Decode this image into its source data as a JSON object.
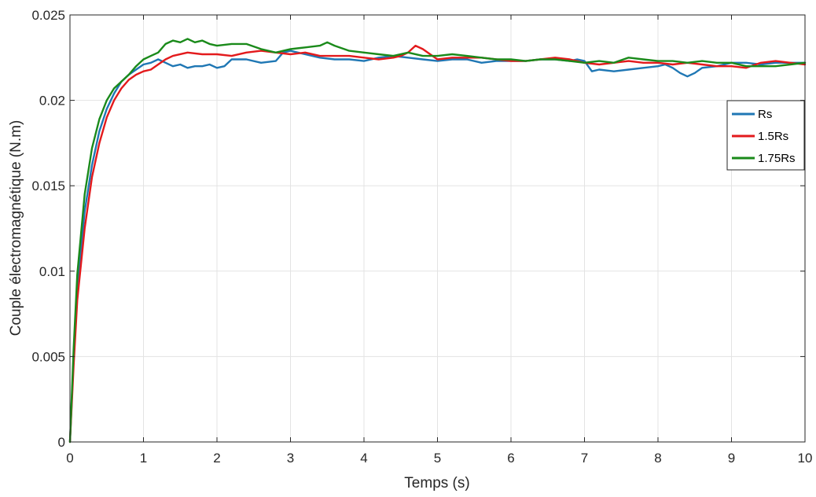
{
  "chart_data": {
    "type": "line",
    "title": "",
    "xlabel": "Temps (s)",
    "ylabel": "Couple électromagnétique (N.m)",
    "xlim": [
      0,
      10
    ],
    "ylim": [
      0,
      0.025
    ],
    "xticks": [
      0,
      1,
      2,
      3,
      4,
      5,
      6,
      7,
      8,
      9,
      10
    ],
    "yticks": [
      0,
      0.005,
      0.01,
      0.015,
      0.02,
      0.025
    ],
    "xtick_labels": [
      "0",
      "1",
      "2",
      "3",
      "4",
      "5",
      "6",
      "7",
      "8",
      "9",
      "10"
    ],
    "ytick_labels": [
      "0",
      "0.005",
      "0.01",
      "0.015",
      "0.02",
      "0.025"
    ],
    "grid": true,
    "legend_position": "right",
    "series": [
      {
        "name": "Rs",
        "color": "#1f77b4",
        "x": [
          0,
          0.05,
          0.1,
          0.2,
          0.3,
          0.4,
          0.5,
          0.6,
          0.7,
          0.8,
          0.9,
          1.0,
          1.1,
          1.2,
          1.3,
          1.4,
          1.5,
          1.6,
          1.7,
          1.8,
          1.9,
          2.0,
          2.1,
          2.2,
          2.4,
          2.6,
          2.8,
          2.9,
          3.0,
          3.1,
          3.2,
          3.4,
          3.6,
          3.8,
          4.0,
          4.2,
          4.4,
          4.6,
          4.8,
          5.0,
          5.2,
          5.4,
          5.6,
          5.8,
          6.0,
          6.2,
          6.4,
          6.6,
          6.8,
          6.9,
          7.0,
          7.1,
          7.2,
          7.4,
          7.6,
          7.8,
          8.0,
          8.1,
          8.2,
          8.3,
          8.4,
          8.5,
          8.6,
          8.8,
          9.0,
          9.2,
          9.4,
          9.6,
          9.8,
          10.0
        ],
        "values": [
          0,
          0.005,
          0.009,
          0.0135,
          0.0162,
          0.0182,
          0.0195,
          0.0204,
          0.0211,
          0.0215,
          0.0218,
          0.0221,
          0.0222,
          0.0224,
          0.0222,
          0.022,
          0.0221,
          0.0219,
          0.022,
          0.022,
          0.0221,
          0.0219,
          0.022,
          0.0224,
          0.0224,
          0.0222,
          0.0223,
          0.0228,
          0.0229,
          0.0228,
          0.0227,
          0.0225,
          0.0224,
          0.0224,
          0.0223,
          0.0225,
          0.0226,
          0.0225,
          0.0224,
          0.0223,
          0.0224,
          0.0224,
          0.0222,
          0.0223,
          0.0223,
          0.0223,
          0.0224,
          0.0224,
          0.0223,
          0.0224,
          0.0223,
          0.0217,
          0.0218,
          0.0217,
          0.0218,
          0.0219,
          0.022,
          0.0221,
          0.0219,
          0.0216,
          0.0214,
          0.0216,
          0.0219,
          0.022,
          0.0222,
          0.0222,
          0.0221,
          0.0222,
          0.0222,
          0.0222
        ]
      },
      {
        "name": "1.5Rs",
        "color": "#e31a1c",
        "x": [
          0,
          0.05,
          0.1,
          0.2,
          0.3,
          0.4,
          0.5,
          0.6,
          0.7,
          0.8,
          0.9,
          1.0,
          1.1,
          1.2,
          1.3,
          1.4,
          1.6,
          1.8,
          2.0,
          2.2,
          2.4,
          2.6,
          2.8,
          3.0,
          3.2,
          3.4,
          3.6,
          3.8,
          4.0,
          4.2,
          4.4,
          4.5,
          4.6,
          4.7,
          4.8,
          4.9,
          5.0,
          5.2,
          5.4,
          5.6,
          5.8,
          6.0,
          6.2,
          6.4,
          6.6,
          6.8,
          7.0,
          7.2,
          7.4,
          7.6,
          7.8,
          8.0,
          8.2,
          8.4,
          8.6,
          8.8,
          9.0,
          9.2,
          9.4,
          9.6,
          9.8,
          10.0
        ],
        "values": [
          0,
          0.0045,
          0.0083,
          0.0125,
          0.0155,
          0.0175,
          0.019,
          0.02,
          0.0207,
          0.0212,
          0.0215,
          0.0217,
          0.0218,
          0.0221,
          0.0224,
          0.0226,
          0.0228,
          0.0227,
          0.0227,
          0.0226,
          0.0228,
          0.0229,
          0.0228,
          0.0227,
          0.0228,
          0.0226,
          0.0226,
          0.0226,
          0.0225,
          0.0224,
          0.0225,
          0.0226,
          0.0228,
          0.0232,
          0.023,
          0.0227,
          0.0224,
          0.0225,
          0.0225,
          0.0225,
          0.0224,
          0.0223,
          0.0223,
          0.0224,
          0.0225,
          0.0224,
          0.0222,
          0.0221,
          0.0222,
          0.0223,
          0.0222,
          0.0222,
          0.0221,
          0.0222,
          0.0221,
          0.022,
          0.022,
          0.0219,
          0.0222,
          0.0223,
          0.0222,
          0.0221
        ]
      },
      {
        "name": "1.75Rs",
        "color": "#1a8a1a",
        "x": [
          0,
          0.05,
          0.1,
          0.2,
          0.3,
          0.4,
          0.5,
          0.6,
          0.7,
          0.8,
          0.9,
          1.0,
          1.1,
          1.2,
          1.3,
          1.4,
          1.5,
          1.6,
          1.7,
          1.8,
          1.9,
          2.0,
          2.2,
          2.4,
          2.6,
          2.8,
          3.0,
          3.2,
          3.4,
          3.5,
          3.6,
          3.8,
          4.0,
          4.2,
          4.4,
          4.6,
          4.8,
          5.0,
          5.2,
          5.4,
          5.6,
          5.8,
          6.0,
          6.2,
          6.4,
          6.6,
          6.8,
          7.0,
          7.2,
          7.4,
          7.6,
          7.8,
          8.0,
          8.2,
          8.4,
          8.6,
          8.8,
          9.0,
          9.2,
          9.4,
          9.6,
          9.8,
          10.0
        ],
        "values": [
          0,
          0.0055,
          0.0098,
          0.0145,
          0.0172,
          0.0189,
          0.02,
          0.0207,
          0.0211,
          0.0215,
          0.022,
          0.0224,
          0.0226,
          0.0228,
          0.0233,
          0.0235,
          0.0234,
          0.0236,
          0.0234,
          0.0235,
          0.0233,
          0.0232,
          0.0233,
          0.0233,
          0.023,
          0.0228,
          0.023,
          0.0231,
          0.0232,
          0.0234,
          0.0232,
          0.0229,
          0.0228,
          0.0227,
          0.0226,
          0.0228,
          0.0226,
          0.0226,
          0.0227,
          0.0226,
          0.0225,
          0.0224,
          0.0224,
          0.0223,
          0.0224,
          0.0224,
          0.0223,
          0.0222,
          0.0223,
          0.0222,
          0.0225,
          0.0224,
          0.0223,
          0.0223,
          0.0222,
          0.0223,
          0.0222,
          0.0222,
          0.022,
          0.022,
          0.022,
          0.0221,
          0.0222
        ]
      }
    ]
  }
}
